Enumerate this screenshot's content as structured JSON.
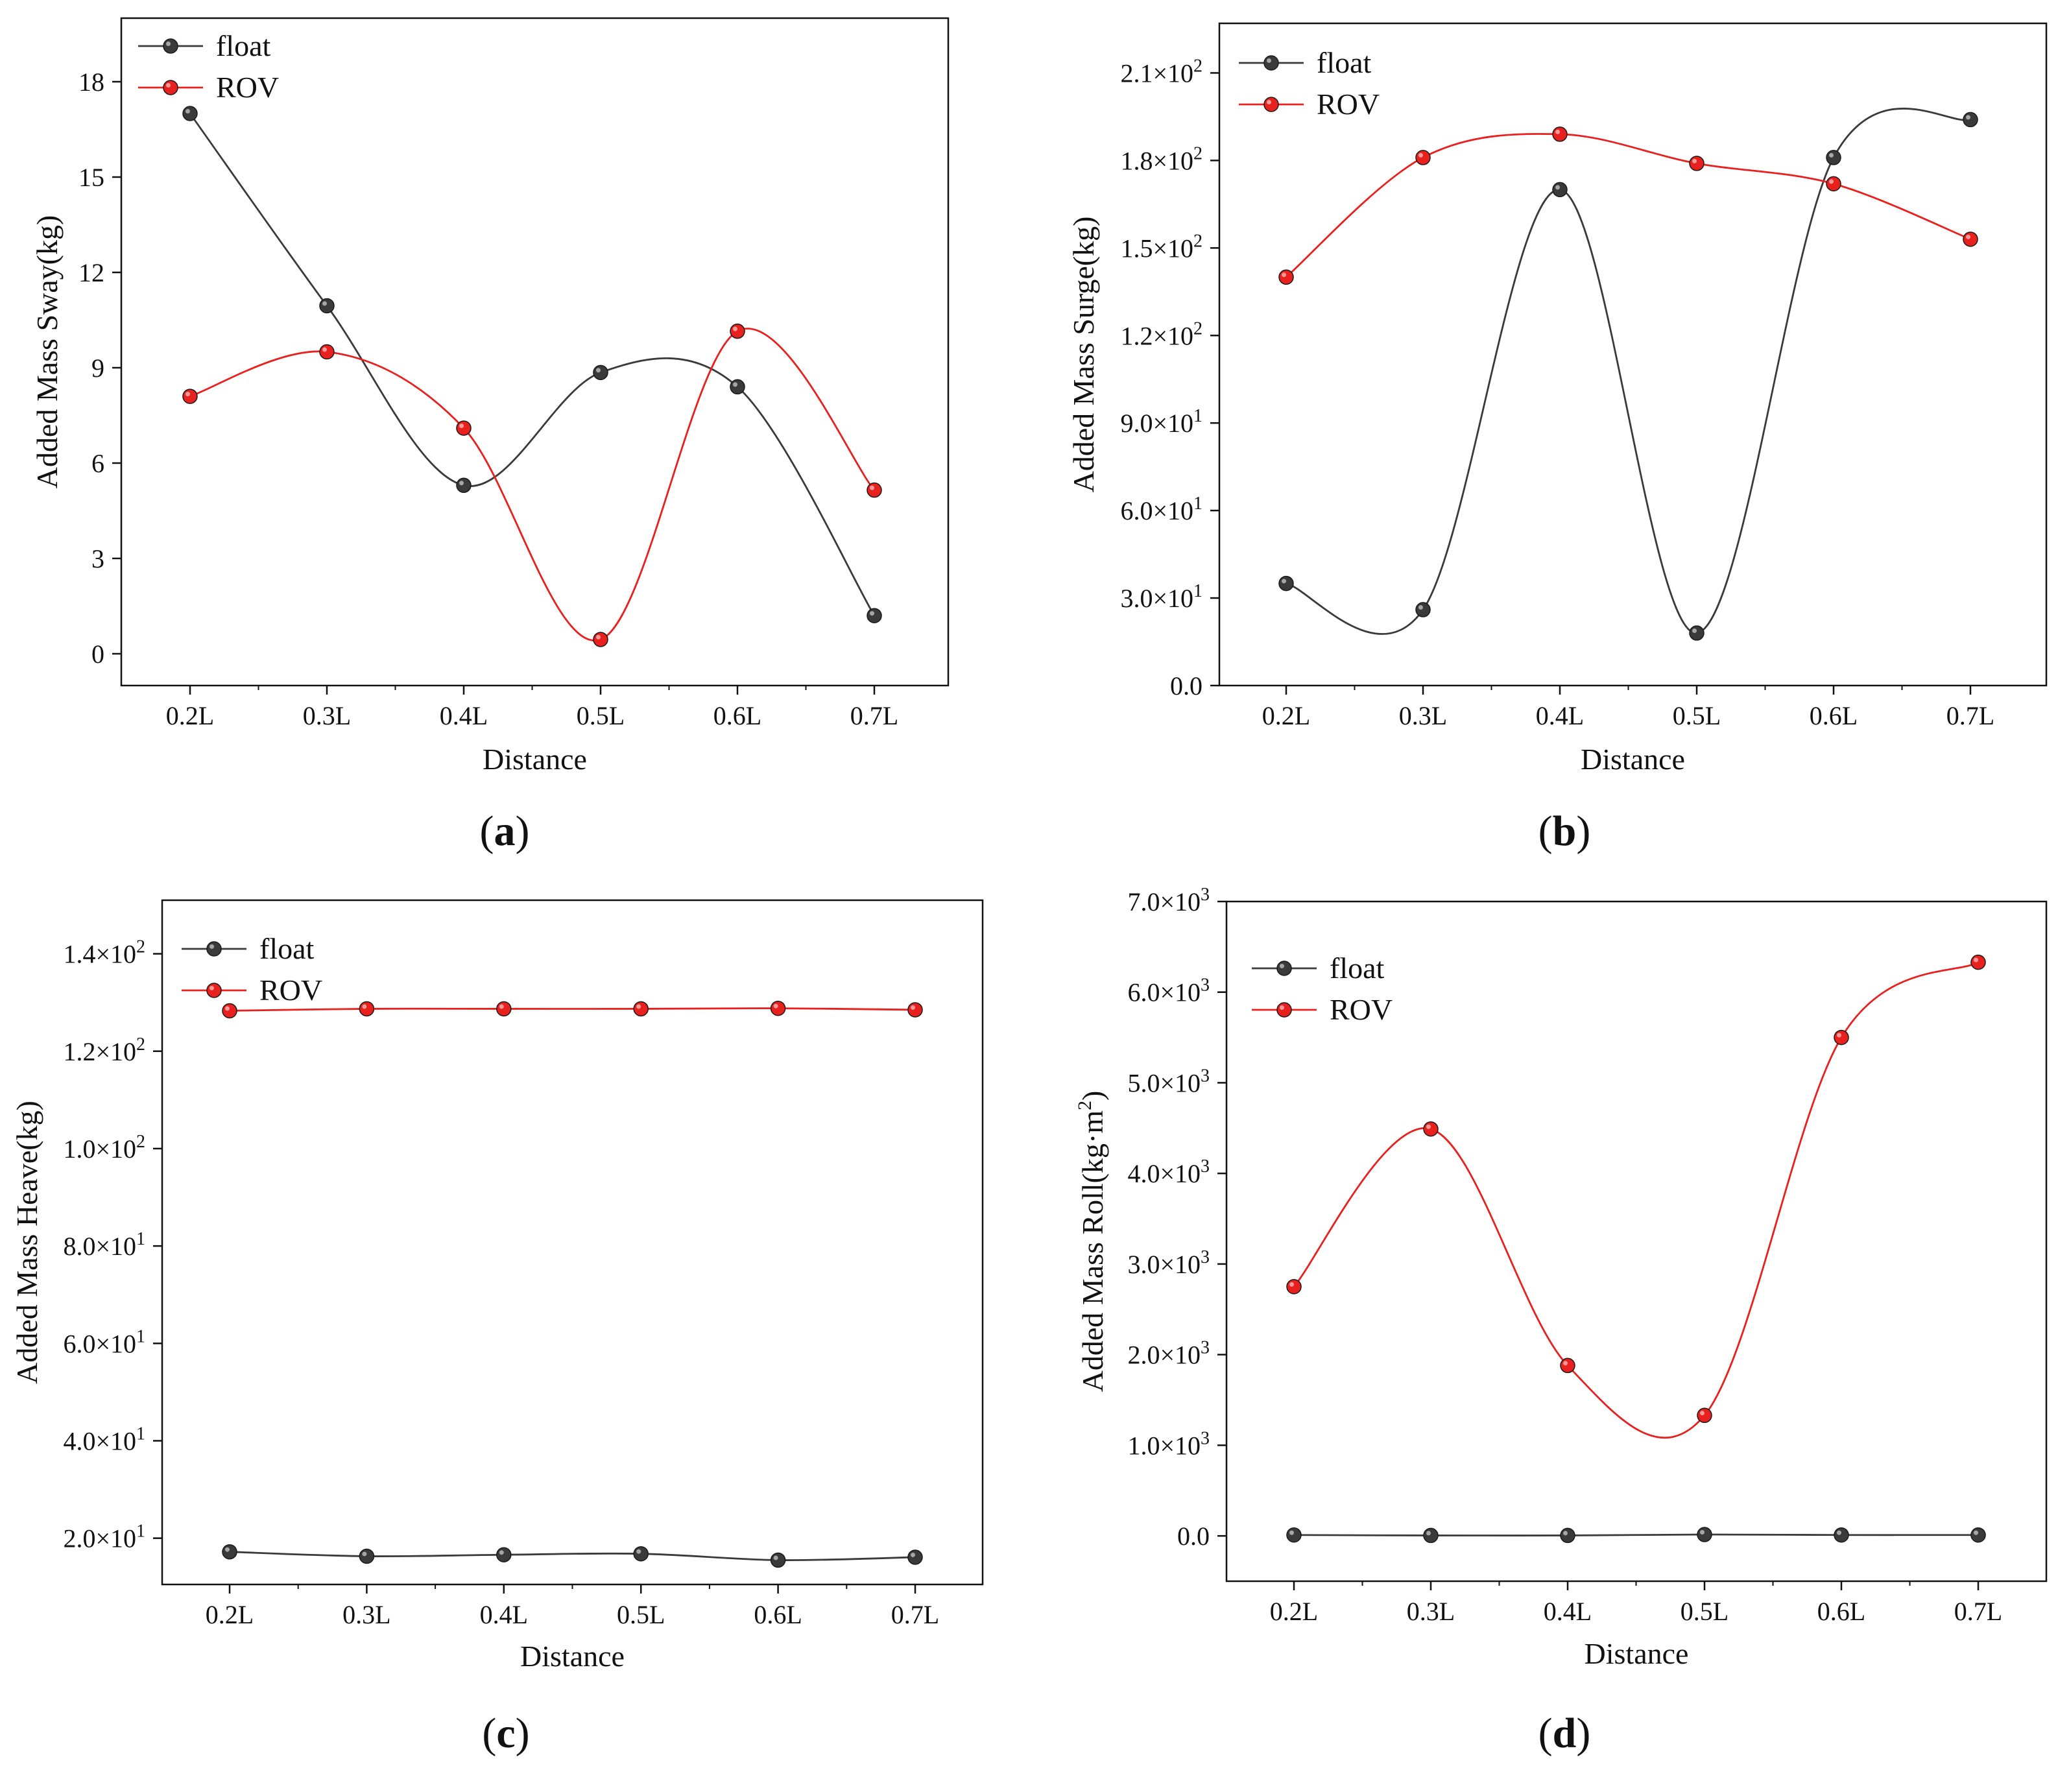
{
  "chart_data": [
    {
      "id": "a",
      "type": "line",
      "panel_label": "a",
      "categories": [
        "0.2L",
        "0.3L",
        "0.4L",
        "0.5L",
        "0.6L",
        "0.7L"
      ],
      "xlabel": "Distance",
      "ylabel": "Added Mass Sway(kg)",
      "ylim": [
        -1,
        20
      ],
      "yticks": [
        0,
        3,
        6,
        9,
        12,
        15,
        18
      ],
      "ytick_labels": [
        "0",
        "3",
        "6",
        "9",
        "12",
        "15",
        "18"
      ],
      "legend_position": "top-left",
      "series": [
        {
          "name": "float",
          "color": "#3a3a3a",
          "values": [
            17.0,
            10.95,
            5.3,
            8.85,
            8.4,
            1.2
          ]
        },
        {
          "name": "ROV",
          "color": "#e8201e",
          "values": [
            8.1,
            9.5,
            7.1,
            0.45,
            10.15,
            5.15
          ]
        }
      ]
    },
    {
      "id": "b",
      "type": "line",
      "panel_label": "b",
      "categories": [
        "0.2L",
        "0.3L",
        "0.4L",
        "0.5L",
        "0.6L",
        "0.7L"
      ],
      "xlabel": "Distance",
      "ylabel": "Added Mass Surge(kg)",
      "ylim": [
        0,
        227
      ],
      "yticks": [
        0,
        30,
        60,
        90,
        120,
        150,
        180,
        210
      ],
      "ytick_labels": [
        "0.0",
        "3.0×10",
        "6.0×10",
        "9.0×10",
        "1.2×10",
        "1.5×10",
        "1.8×10",
        "2.1×10"
      ],
      "ytick_exponents": [
        "",
        "1",
        "1",
        "1",
        "2",
        "2",
        "2",
        "2"
      ],
      "legend_position": "top-left",
      "series": [
        {
          "name": "float",
          "color": "#3a3a3a",
          "values": [
            35,
            26,
            170,
            18,
            181,
            194
          ]
        },
        {
          "name": "ROV",
          "color": "#e8201e",
          "values": [
            140,
            181,
            189,
            179,
            172,
            153
          ]
        }
      ]
    },
    {
      "id": "c",
      "type": "line",
      "panel_label": "c",
      "categories": [
        "0.2L",
        "0.3L",
        "0.4L",
        "0.5L",
        "0.6L",
        "0.7L"
      ],
      "xlabel": "Distance",
      "ylabel": "Added Mass Heave(kg)",
      "ylim": [
        10.5,
        151
      ],
      "yticks": [
        20,
        40,
        60,
        80,
        100,
        120,
        140
      ],
      "ytick_labels": [
        "2.0×10",
        "4.0×10",
        "6.0×10",
        "8.0×10",
        "1.0×10",
        "1.2×10",
        "1.4×10"
      ],
      "ytick_exponents": [
        "1",
        "1",
        "1",
        "1",
        "2",
        "2",
        "2"
      ],
      "legend_position": "top-left",
      "series": [
        {
          "name": "float",
          "color": "#3a3a3a",
          "values": [
            17.2,
            16.3,
            16.6,
            16.8,
            15.5,
            16.1
          ]
        },
        {
          "name": "ROV",
          "color": "#e8201e",
          "values": [
            128.3,
            128.7,
            128.7,
            128.7,
            128.8,
            128.5
          ]
        }
      ]
    },
    {
      "id": "d",
      "type": "line",
      "panel_label": "d",
      "categories": [
        "0.2L",
        "0.3L",
        "0.4L",
        "0.5L",
        "0.6L",
        "0.7L"
      ],
      "xlabel": "Distance",
      "ylabel": "Added Mass Roll(kg·m",
      "ylabel_superscript": "2",
      "ylabel_suffix": ")",
      "ylim": [
        -500,
        7000
      ],
      "yticks": [
        0,
        1000,
        2000,
        3000,
        4000,
        5000,
        6000,
        7000
      ],
      "ytick_labels": [
        "0.0",
        "1.0×10",
        "2.0×10",
        "3.0×10",
        "4.0×10",
        "5.0×10",
        "6.0×10",
        "7.0×10"
      ],
      "ytick_exponents": [
        "",
        "3",
        "3",
        "3",
        "3",
        "3",
        "3",
        "3"
      ],
      "legend_position": "top-left",
      "series": [
        {
          "name": "float",
          "color": "#3a3a3a",
          "values": [
            10,
            5,
            5,
            15,
            10,
            10
          ]
        },
        {
          "name": "ROV",
          "color": "#e8201e",
          "values": [
            2750,
            4490,
            1880,
            1330,
            5500,
            6330
          ]
        }
      ]
    }
  ]
}
